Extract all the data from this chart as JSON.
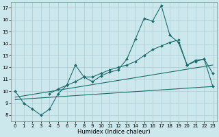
{
  "xlabel": "Humidex (Indice chaleur)",
  "xlim": [
    -0.5,
    23.5
  ],
  "ylim": [
    7.5,
    17.5
  ],
  "xticks": [
    0,
    1,
    2,
    3,
    4,
    5,
    6,
    7,
    8,
    9,
    10,
    11,
    12,
    13,
    14,
    15,
    16,
    17,
    18,
    19,
    20,
    21,
    22,
    23
  ],
  "yticks": [
    8,
    9,
    10,
    11,
    12,
    13,
    14,
    15,
    16,
    17
  ],
  "background_color": "#cce8ec",
  "grid_color": "#aacdd4",
  "line_color": "#1a6b6b",
  "line1_x": [
    0,
    1,
    2,
    3,
    4,
    5,
    6,
    7,
    8,
    9,
    10,
    11,
    12,
    13,
    14,
    15,
    16,
    17,
    18,
    19,
    20,
    21,
    22,
    23
  ],
  "line1_y": [
    10.0,
    9.0,
    8.5,
    8.0,
    8.5,
    9.8,
    10.5,
    12.2,
    11.2,
    10.8,
    11.3,
    11.6,
    11.8,
    12.7,
    14.4,
    16.1,
    15.9,
    17.2,
    14.7,
    14.1,
    12.2,
    12.6,
    12.7,
    10.4
  ],
  "line2_x": [
    4,
    5,
    6,
    7,
    8,
    9,
    10,
    11,
    12,
    13,
    14,
    15,
    16,
    17,
    18,
    19,
    20,
    21,
    22,
    23
  ],
  "line2_y": [
    9.8,
    10.2,
    10.5,
    10.8,
    11.2,
    11.2,
    11.5,
    11.8,
    12.0,
    12.2,
    12.5,
    13.0,
    13.5,
    13.8,
    14.1,
    14.3,
    12.2,
    12.5,
    12.7,
    11.5
  ],
  "line3_x": [
    0,
    23
  ],
  "line3_y": [
    9.5,
    12.2
  ],
  "line4_x": [
    0,
    23
  ],
  "line4_y": [
    9.3,
    10.4
  ]
}
